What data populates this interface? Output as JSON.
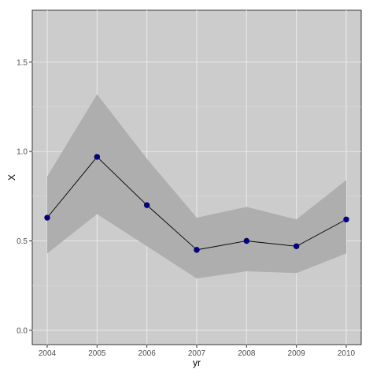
{
  "chart_data": {
    "type": "line",
    "title": "",
    "xlabel": "yr",
    "ylabel": "X",
    "x": [
      "2004",
      "2005",
      "2006",
      "2007",
      "2008",
      "2009",
      "2010"
    ],
    "series": [
      {
        "values": [
          0.63,
          0.97,
          0.7,
          0.45,
          0.5,
          0.47,
          0.62
        ],
        "lower": [
          0.43,
          0.65,
          0.47,
          0.29,
          0.33,
          0.32,
          0.43
        ],
        "upper": [
          0.86,
          1.32,
          0.96,
          0.63,
          0.69,
          0.62,
          0.84
        ]
      }
    ],
    "ylim": [
      -0.08,
      1.79
    ],
    "yticks": [
      0.0,
      0.5,
      1.0,
      1.5
    ],
    "ytick_labels": [
      "0.0",
      "0.5",
      "1.0",
      "1.5"
    ],
    "grid": true,
    "colors": {
      "panel": "#cccccc",
      "ribbon": "#aeaeae",
      "line": "#000000",
      "point": "#00008b",
      "grid": "#e8e8e8"
    }
  }
}
